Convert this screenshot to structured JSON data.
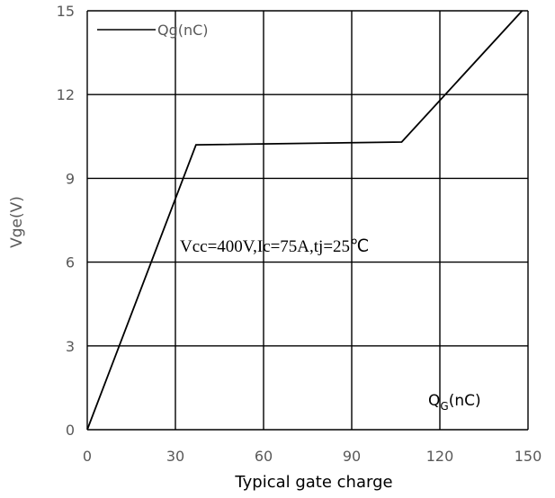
{
  "chart_data": {
    "type": "line",
    "xlabel": "Typical gate charge",
    "ylabel": "Vge(V)",
    "xlim": [
      0,
      150
    ],
    "ylim": [
      0,
      15
    ],
    "xticks": [
      "0",
      "30",
      "60",
      "90",
      "120",
      "150"
    ],
    "yticks": [
      "0",
      "3",
      "6",
      "9",
      "12",
      "15"
    ],
    "grid": true,
    "legend_position": "top-left",
    "annotation": "Vcc=400V,Ic=75A,tj=25℃",
    "corner_label": {
      "main": "Q",
      "sub": "G",
      "rest": "(nC)"
    },
    "series": [
      {
        "name": "Qg(nC)",
        "color": "#000000",
        "x": [
          0,
          37,
          107,
          148
        ],
        "y": [
          0,
          10.2,
          10.3,
          15
        ]
      }
    ]
  }
}
